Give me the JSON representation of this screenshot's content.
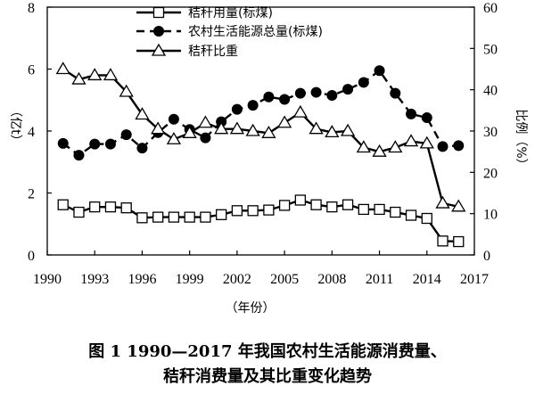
{
  "chart_data": {
    "type": "line",
    "x": [
      1991,
      1992,
      1993,
      1994,
      1995,
      1996,
      1997,
      1998,
      1999,
      2000,
      2001,
      2002,
      2003,
      2004,
      2005,
      2006,
      2007,
      2008,
      2009,
      2010,
      2011,
      2012,
      2013,
      2014,
      2015,
      2016
    ],
    "xticks": [
      1990,
      1993,
      1996,
      1999,
      2002,
      2005,
      2008,
      2011,
      2014,
      2017
    ],
    "xlim": [
      1990,
      2017
    ],
    "xlabel": "（年份）",
    "ylabel_left": "（亿t）",
    "ylabel_right": "比例（%）",
    "ylim_left": [
      0,
      8
    ],
    "ylim_right": [
      0,
      60
    ],
    "yticks_left": [
      0,
      2,
      4,
      6,
      8
    ],
    "yticks_right": [
      0,
      10,
      20,
      30,
      40,
      50,
      60
    ],
    "grid": false,
    "legend_position": "top-center",
    "series": [
      {
        "name": "秸秆用量(标煤)",
        "axis": "left",
        "marker": "square",
        "line_style": "solid",
        "values": [
          1.62,
          1.38,
          1.55,
          1.55,
          1.52,
          1.2,
          1.22,
          1.22,
          1.22,
          1.22,
          1.3,
          1.43,
          1.43,
          1.45,
          1.6,
          1.77,
          1.62,
          1.55,
          1.62,
          1.47,
          1.47,
          1.38,
          1.28,
          1.18,
          0.45,
          0.43
        ]
      },
      {
        "name": "农村生活能源总量(标煤)",
        "axis": "left",
        "marker": "circle",
        "line_style": "dashed",
        "values": [
          3.6,
          3.22,
          3.58,
          3.58,
          3.88,
          3.45,
          3.95,
          4.38,
          4.05,
          3.78,
          4.3,
          4.7,
          4.83,
          5.1,
          5.02,
          5.22,
          5.25,
          5.15,
          5.35,
          5.57,
          5.95,
          5.22,
          4.55,
          4.43,
          3.5,
          3.53
        ]
      },
      {
        "name": "秸秆比重",
        "axis": "right",
        "marker": "triangle",
        "line_style": "solid",
        "values": [
          45,
          42.5,
          43.5,
          43.5,
          39.5,
          34,
          30.5,
          28,
          29.5,
          32,
          30.5,
          30.5,
          30,
          29.5,
          32,
          34.5,
          30.5,
          29.7,
          30,
          26,
          25,
          26,
          27.5,
          27,
          12.5,
          11.7
        ]
      }
    ]
  },
  "caption": {
    "line1": "图 1    1990—2017 年我国农村生活能源消费量、",
    "line2": "秸秆消费量及其比重变化趋势"
  }
}
